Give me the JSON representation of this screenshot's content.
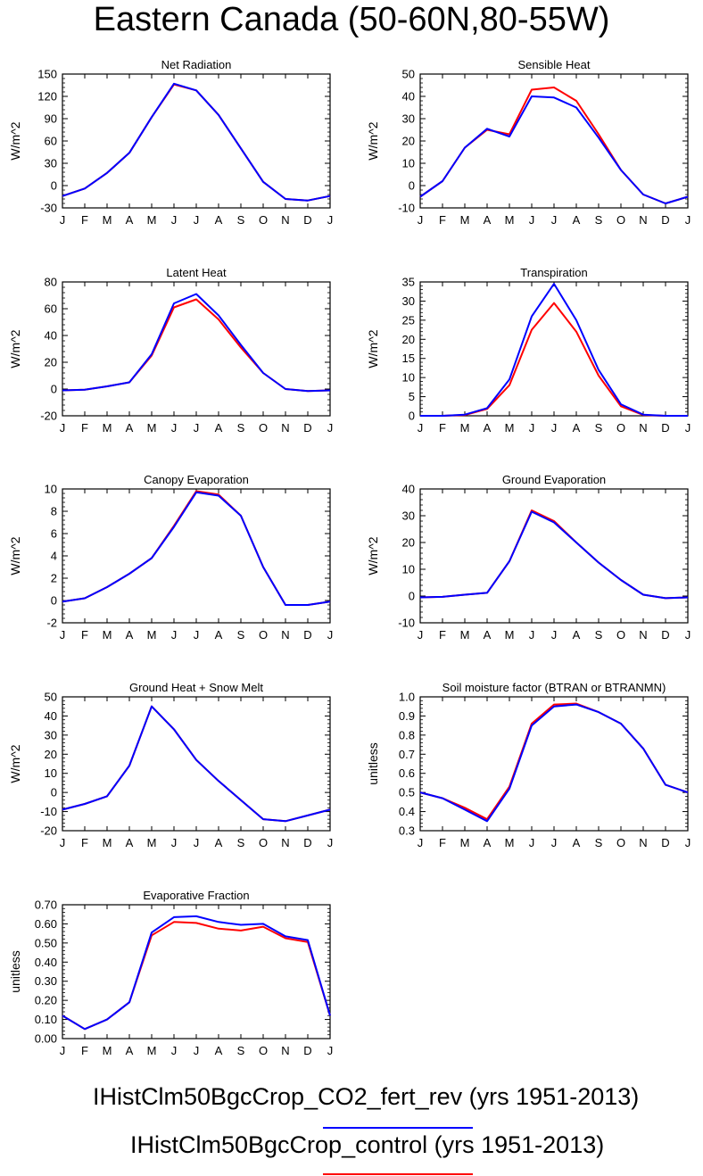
{
  "title": "Eastern Canada (50-60N,80-55W)",
  "colors": {
    "co2_fert_rev": "#0000ff",
    "control": "#ff0000"
  },
  "legend": [
    {
      "label": "IHistClm50BgcCrop_CO2_fert_rev (yrs 1951-2013)",
      "color": "#0000ff"
    },
    {
      "label": "IHistClm50BgcCrop_control (yrs 1951-2013)",
      "color": "#ff0000"
    }
  ],
  "chart_data": [
    {
      "type": "line",
      "title": "Net Radiation",
      "ylabel": "W/m^2",
      "categories": [
        "J",
        "F",
        "M",
        "A",
        "M",
        "J",
        "J",
        "A",
        "S",
        "O",
        "N",
        "D",
        "J"
      ],
      "ylim": [
        -30,
        150
      ],
      "yticks": [
        -30,
        0,
        30,
        60,
        90,
        120,
        150
      ],
      "ytick_labels": [
        "-30",
        "0",
        "30",
        "60",
        "90",
        "120",
        "150"
      ],
      "series": [
        {
          "color": "#ff0000",
          "values": [
            -14,
            -4,
            17,
            44,
            92,
            136,
            128,
            95,
            50,
            5,
            -18,
            -20,
            -14
          ]
        },
        {
          "color": "#0000ff",
          "values": [
            -14,
            -4,
            17,
            44,
            92,
            137,
            128,
            95,
            50,
            5,
            -18,
            -20,
            -14
          ]
        }
      ]
    },
    {
      "type": "line",
      "title": "Sensible Heat",
      "ylabel": "W/m^2",
      "categories": [
        "J",
        "F",
        "M",
        "A",
        "M",
        "J",
        "J",
        "A",
        "S",
        "O",
        "N",
        "D",
        "J"
      ],
      "ylim": [
        -10,
        50
      ],
      "yticks": [
        -10,
        0,
        10,
        20,
        30,
        40,
        50
      ],
      "ytick_labels": [
        "-10",
        "0",
        "10",
        "20",
        "30",
        "40",
        "50"
      ],
      "series": [
        {
          "color": "#ff0000",
          "values": [
            -5,
            2,
            17,
            25,
            23,
            43,
            44,
            38,
            23,
            7,
            -4,
            -8,
            -5
          ]
        },
        {
          "color": "#0000ff",
          "values": [
            -5,
            2,
            17,
            25.5,
            22,
            40,
            39.5,
            35,
            21.5,
            7,
            -4,
            -8,
            -5
          ]
        }
      ]
    },
    {
      "type": "line",
      "title": "Latent Heat",
      "ylabel": "W/m^2",
      "categories": [
        "J",
        "F",
        "M",
        "A",
        "M",
        "J",
        "J",
        "A",
        "S",
        "O",
        "N",
        "D",
        "J"
      ],
      "ylim": [
        -20,
        80
      ],
      "yticks": [
        -20,
        0,
        20,
        40,
        60,
        80
      ],
      "ytick_labels": [
        "-20",
        "0",
        "20",
        "40",
        "60",
        "80"
      ],
      "series": [
        {
          "color": "#ff0000",
          "values": [
            -1,
            -0.5,
            2,
            5,
            25,
            61,
            67,
            52,
            31,
            12,
            0,
            -1.5,
            -1
          ]
        },
        {
          "color": "#0000ff",
          "values": [
            -1,
            -0.5,
            2,
            5,
            26,
            64,
            71,
            55,
            33,
            12,
            0,
            -1.5,
            -1
          ]
        }
      ]
    },
    {
      "type": "line",
      "title": "Transpiration",
      "ylabel": "W/m^2",
      "categories": [
        "J",
        "F",
        "M",
        "A",
        "M",
        "J",
        "J",
        "A",
        "S",
        "O",
        "N",
        "D",
        "J"
      ],
      "ylim": [
        0,
        35
      ],
      "yticks": [
        0,
        5,
        10,
        15,
        20,
        25,
        30,
        35
      ],
      "ytick_labels": [
        "0",
        "5",
        "10",
        "15",
        "20",
        "25",
        "30",
        "35"
      ],
      "series": [
        {
          "color": "#ff0000",
          "values": [
            0,
            0,
            0.2,
            1.8,
            8,
            22.5,
            29.5,
            22,
            10.5,
            2.5,
            0.2,
            0,
            0
          ]
        },
        {
          "color": "#0000ff",
          "values": [
            0,
            0,
            0.3,
            2,
            9.5,
            26,
            34.5,
            25,
            12,
            3,
            0.3,
            0,
            0
          ]
        }
      ]
    },
    {
      "type": "line",
      "title": "Canopy Evaporation",
      "ylabel": "W/m^2",
      "categories": [
        "J",
        "F",
        "M",
        "A",
        "M",
        "J",
        "J",
        "A",
        "S",
        "O",
        "N",
        "D",
        "J"
      ],
      "ylim": [
        -2,
        10
      ],
      "yticks": [
        -2,
        0,
        2,
        4,
        6,
        8,
        10
      ],
      "ytick_labels": [
        "-2",
        "0",
        "2",
        "4",
        "6",
        "8",
        "10"
      ],
      "series": [
        {
          "color": "#ff0000",
          "values": [
            -0.1,
            0.2,
            1.2,
            2.4,
            3.8,
            6.7,
            9.8,
            9.5,
            7.6,
            3,
            -0.4,
            -0.4,
            -0.1
          ]
        },
        {
          "color": "#0000ff",
          "values": [
            -0.1,
            0.2,
            1.2,
            2.4,
            3.8,
            6.6,
            9.7,
            9.4,
            7.6,
            3,
            -0.4,
            -0.4,
            -0.1
          ]
        }
      ]
    },
    {
      "type": "line",
      "title": "Ground Evaporation",
      "ylabel": "W/m^2",
      "categories": [
        "J",
        "F",
        "M",
        "A",
        "M",
        "J",
        "J",
        "A",
        "S",
        "O",
        "N",
        "D",
        "J"
      ],
      "ylim": [
        -10,
        40
      ],
      "yticks": [
        -10,
        0,
        10,
        20,
        30,
        40
      ],
      "ytick_labels": [
        "-10",
        "0",
        "10",
        "20",
        "30",
        "40"
      ],
      "series": [
        {
          "color": "#ff0000",
          "values": [
            -0.5,
            -0.3,
            0.5,
            1.2,
            13,
            32,
            28,
            20,
            12.5,
            6,
            0.5,
            -0.8,
            -0.5
          ]
        },
        {
          "color": "#0000ff",
          "values": [
            -0.5,
            -0.3,
            0.5,
            1.2,
            13,
            31.5,
            27.5,
            20,
            12.5,
            6,
            0.5,
            -0.8,
            -0.5
          ]
        }
      ]
    },
    {
      "type": "line",
      "title": "Ground Heat + Snow Melt",
      "ylabel": "W/m^2",
      "categories": [
        "J",
        "F",
        "M",
        "A",
        "M",
        "J",
        "J",
        "A",
        "S",
        "O",
        "N",
        "D",
        "J"
      ],
      "ylim": [
        -20,
        50
      ],
      "yticks": [
        -20,
        -10,
        0,
        10,
        20,
        30,
        40,
        50
      ],
      "ytick_labels": [
        "-20",
        "-10",
        "0",
        "10",
        "20",
        "30",
        "40",
        "50"
      ],
      "series": [
        {
          "color": "#ff0000",
          "values": [
            -9,
            -6,
            -2,
            14,
            45,
            33,
            17,
            6,
            -4,
            -14,
            -15,
            -12,
            -9
          ]
        },
        {
          "color": "#0000ff",
          "values": [
            -9,
            -6,
            -2,
            14,
            45,
            33,
            17,
            6,
            -4,
            -14,
            -15,
            -12,
            -9
          ]
        }
      ]
    },
    {
      "type": "line",
      "title": "Soil moisture factor (BTRAN or BTRANMN)",
      "ylabel": "unitless",
      "categories": [
        "J",
        "F",
        "M",
        "A",
        "M",
        "J",
        "J",
        "A",
        "S",
        "O",
        "N",
        "D",
        "J"
      ],
      "ylim": [
        0.3,
        1.0
      ],
      "yticks": [
        0.3,
        0.4,
        0.5,
        0.6,
        0.7,
        0.8,
        0.9,
        1.0
      ],
      "ytick_labels": [
        "0.3",
        "0.4",
        "0.5",
        "0.6",
        "0.7",
        "0.8",
        "0.9",
        "1.0"
      ],
      "series": [
        {
          "color": "#ff0000",
          "values": [
            0.5,
            0.47,
            0.42,
            0.36,
            0.53,
            0.86,
            0.96,
            0.965,
            0.92,
            0.86,
            0.73,
            0.54,
            0.5
          ]
        },
        {
          "color": "#0000ff",
          "values": [
            0.5,
            0.47,
            0.41,
            0.35,
            0.52,
            0.85,
            0.95,
            0.96,
            0.92,
            0.86,
            0.73,
            0.54,
            0.5
          ]
        }
      ]
    },
    {
      "type": "line",
      "title": "Evaporative Fraction",
      "ylabel": "unitless",
      "categories": [
        "J",
        "F",
        "M",
        "A",
        "M",
        "J",
        "J",
        "A",
        "S",
        "O",
        "N",
        "D",
        "J"
      ],
      "ylim": [
        0.0,
        0.7
      ],
      "yticks": [
        0,
        0.1,
        0.2,
        0.3,
        0.4,
        0.5,
        0.6,
        0.7
      ],
      "ytick_labels": [
        "0.00",
        "0.10",
        "0.20",
        "0.30",
        "0.40",
        "0.50",
        "0.60",
        "0.70"
      ],
      "series": [
        {
          "color": "#ff0000",
          "values": [
            0.12,
            0.05,
            0.1,
            0.19,
            0.54,
            0.61,
            0.605,
            0.575,
            0.565,
            0.585,
            0.525,
            0.505,
            0.12
          ]
        },
        {
          "color": "#0000ff",
          "values": [
            0.12,
            0.05,
            0.1,
            0.19,
            0.555,
            0.635,
            0.64,
            0.61,
            0.595,
            0.6,
            0.535,
            0.515,
            0.12
          ]
        }
      ]
    }
  ]
}
